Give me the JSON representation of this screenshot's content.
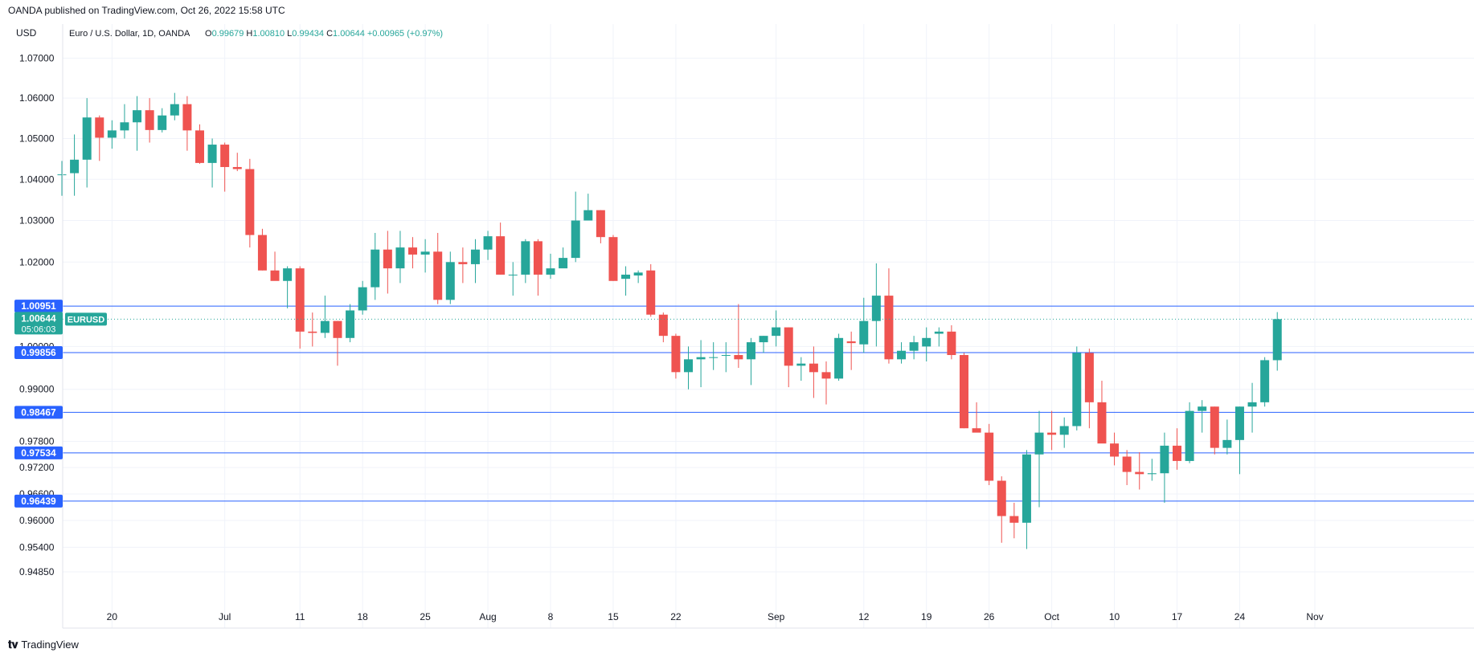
{
  "header": {
    "published": "OANDA published on TradingView.com, Oct 26, 2022 15:58 UTC"
  },
  "footer": {
    "logo_text": "TradingView"
  },
  "legend": {
    "currency": "USD",
    "symbol_text": "Euro / U.S. Dollar, 1D, OANDA",
    "open_label": "O",
    "open": "0.99679",
    "high_label": "H",
    "high": "1.00810",
    "low_label": "L",
    "low": "0.99434",
    "close_label": "C",
    "close": "1.00644",
    "change": "+0.00965 (+0.97%)"
  },
  "colors": {
    "up": "#26a69a",
    "down": "#ef5350",
    "grid": "#f0f3fa",
    "hline": "#2962ff",
    "axis_label_bg": "#2962ff",
    "last_price_bg": "#26a69a"
  },
  "price_scale": {
    "ticks": [
      "1.07000",
      "1.06000",
      "1.05000",
      "1.04000",
      "1.03000",
      "1.02000",
      "1.00000",
      "0.99000",
      "0.97800",
      "0.97200",
      "0.96600",
      "0.96000",
      "0.95400",
      "0.94850"
    ]
  },
  "horizontal_lines": [
    "1.00951",
    "0.99856",
    "0.98467",
    "0.97534",
    "0.96439"
  ],
  "last_price": {
    "value": "1.00644",
    "countdown": "05:06:03",
    "symbol": "EURUSD"
  },
  "chart_data": {
    "type": "candlestick",
    "title": "Euro / U.S. Dollar, 1D, OANDA",
    "ylabel": "USD",
    "ylim": [
      0.9444,
      1.0735
    ],
    "scale": "log",
    "x_ticks": [
      {
        "label": "20",
        "index": 4
      },
      {
        "label": "Jul",
        "index": 13
      },
      {
        "label": "11",
        "index": 19
      },
      {
        "label": "18",
        "index": 24
      },
      {
        "label": "25",
        "index": 29
      },
      {
        "label": "Aug",
        "index": 34
      },
      {
        "label": "8",
        "index": 39
      },
      {
        "label": "15",
        "index": 44
      },
      {
        "label": "22",
        "index": 49
      },
      {
        "label": "Sep",
        "index": 57
      },
      {
        "label": "12",
        "index": 64
      },
      {
        "label": "19",
        "index": 69
      },
      {
        "label": "26",
        "index": 74
      },
      {
        "label": "Oct",
        "index": 79
      },
      {
        "label": "10",
        "index": 84
      },
      {
        "label": "17",
        "index": 89
      },
      {
        "label": "24",
        "index": 94
      },
      {
        "label": "Nov",
        "index": 100
      }
    ],
    "candles": [
      [
        1.0412,
        1.0445,
        1.036,
        1.0412
      ],
      [
        1.0415,
        1.051,
        1.036,
        1.0448
      ],
      [
        1.0448,
        1.06,
        1.038,
        1.0552
      ],
      [
        1.0552,
        1.0557,
        1.0445,
        1.0502
      ],
      [
        1.0502,
        1.0545,
        1.0475,
        1.052
      ],
      [
        1.052,
        1.0585,
        1.05,
        1.054
      ],
      [
        1.054,
        1.0605,
        1.047,
        1.057
      ],
      [
        1.057,
        1.06,
        1.049,
        1.0521
      ],
      [
        1.0521,
        1.0575,
        1.0515,
        1.0557
      ],
      [
        1.0557,
        1.0613,
        1.0545,
        1.0585
      ],
      [
        1.0585,
        1.0605,
        1.047,
        1.052
      ],
      [
        1.052,
        1.0535,
        1.0438,
        1.044
      ],
      [
        1.044,
        1.05,
        1.038,
        1.0485
      ],
      [
        1.0485,
        1.049,
        1.037,
        1.043
      ],
      [
        1.043,
        1.0465,
        1.042,
        1.0425
      ],
      [
        1.0425,
        1.045,
        1.0235,
        1.0265
      ],
      [
        1.0265,
        1.028,
        1.018,
        1.018
      ],
      [
        1.018,
        1.0225,
        1.016,
        1.0155
      ],
      [
        1.0155,
        1.019,
        1.009,
        1.0185
      ],
      [
        1.0185,
        1.019,
        0.9995,
        1.0035
      ],
      [
        1.0035,
        1.008,
        1.0,
        1.0032
      ],
      [
        1.0032,
        1.012,
        1.002,
        1.006
      ],
      [
        1.006,
        1.006,
        0.9955,
        1.002
      ],
      [
        1.002,
        1.01,
        1.001,
        1.0085
      ],
      [
        1.0085,
        1.0155,
        1.0075,
        1.014
      ],
      [
        1.014,
        1.027,
        1.011,
        1.023
      ],
      [
        1.023,
        1.0275,
        1.0125,
        1.0185
      ],
      [
        1.0185,
        1.0275,
        1.015,
        1.0235
      ],
      [
        1.0235,
        1.026,
        1.0185,
        1.0218
      ],
      [
        1.0218,
        1.0255,
        1.0175,
        1.0225
      ],
      [
        1.0225,
        1.027,
        1.01,
        1.011
      ],
      [
        1.011,
        1.0225,
        1.01,
        1.02
      ],
      [
        1.02,
        1.0235,
        1.015,
        1.0195
      ],
      [
        1.0195,
        1.0255,
        1.015,
        1.023
      ],
      [
        1.023,
        1.0275,
        1.0205,
        1.0262
      ],
      [
        1.0262,
        1.0295,
        1.017,
        1.017
      ],
      [
        1.017,
        1.02,
        1.012,
        1.017
      ],
      [
        1.017,
        1.0255,
        1.015,
        1.025
      ],
      [
        1.025,
        1.0255,
        1.012,
        1.017
      ],
      [
        1.017,
        1.022,
        1.016,
        1.0185
      ],
      [
        1.0185,
        1.0235,
        1.019,
        1.021
      ],
      [
        1.021,
        1.037,
        1.02,
        1.03
      ],
      [
        1.03,
        1.0365,
        1.03,
        1.0325
      ],
      [
        1.0325,
        1.0325,
        1.0245,
        1.026
      ],
      [
        1.026,
        1.0265,
        1.0155,
        1.0155
      ],
      [
        1.016,
        1.019,
        1.012,
        1.017
      ],
      [
        1.0168,
        1.018,
        1.015,
        1.0175
      ],
      [
        1.018,
        1.0195,
        1.007,
        1.0075
      ],
      [
        1.0075,
        1.008,
        1.001,
        1.0025
      ],
      [
        1.0025,
        1.003,
        0.9925,
        0.994
      ],
      [
        0.994,
        1.0,
        0.99,
        0.997
      ],
      [
        0.997,
        1.0015,
        0.9905,
        0.9975
      ],
      [
        0.9975,
        1.001,
        0.9945,
        0.9975
      ],
      [
        0.998,
        1.001,
        0.994,
        0.998
      ],
      [
        0.998,
        1.01,
        0.995,
        0.997
      ],
      [
        0.997,
        1.002,
        0.991,
        1.001
      ],
      [
        1.001,
        1.0025,
        0.9985,
        1.0025
      ],
      [
        1.0025,
        1.0085,
        1.0,
        1.0045
      ],
      [
        1.0045,
        1.0045,
        0.9905,
        0.9955
      ],
      [
        0.9955,
        0.9975,
        0.992,
        0.996
      ],
      [
        0.996,
        1.0,
        0.988,
        0.994
      ],
      [
        0.994,
        0.9965,
        0.9865,
        0.9925
      ],
      [
        0.9925,
        1.003,
        0.992,
        1.002
      ],
      [
        1.0012,
        1.0035,
        0.9945,
        1.0008
      ],
      [
        1.0005,
        1.0115,
        0.9985,
        1.006
      ],
      [
        1.006,
        1.0197,
        1.0,
        1.012
      ],
      [
        1.012,
        1.0185,
        0.996,
        0.997
      ],
      [
        0.997,
        1.001,
        0.996,
        0.999
      ],
      [
        0.999,
        1.0025,
        0.997,
        1.001
      ],
      [
        1.0,
        1.0045,
        0.9965,
        1.002
      ],
      [
        1.003,
        1.0045,
        1.0,
        1.0035
      ],
      [
        1.0035,
        1.005,
        0.997,
        0.998
      ],
      [
        0.998,
        0.9985,
        0.981,
        0.981
      ],
      [
        0.981,
        0.987,
        0.9805,
        0.98
      ],
      [
        0.98,
        0.982,
        0.968,
        0.969
      ],
      [
        0.969,
        0.97,
        0.955,
        0.961
      ],
      [
        0.961,
        0.964,
        0.956,
        0.9595
      ],
      [
        0.9595,
        0.976,
        0.9536,
        0.975
      ],
      [
        0.975,
        0.985,
        0.963,
        0.98
      ],
      [
        0.98,
        0.985,
        0.976,
        0.9795
      ],
      [
        0.9795,
        0.9835,
        0.9765,
        0.9815
      ],
      [
        0.9815,
        1.0,
        0.9805,
        0.9985
      ],
      [
        0.9985,
        0.9995,
        0.981,
        0.987
      ],
      [
        0.987,
        0.992,
        0.9785,
        0.9775
      ],
      [
        0.9775,
        0.98,
        0.9725,
        0.9745
      ],
      [
        0.9745,
        0.976,
        0.968,
        0.971
      ],
      [
        0.971,
        0.9755,
        0.967,
        0.9705
      ],
      [
        0.9705,
        0.974,
        0.969,
        0.9707
      ],
      [
        0.9707,
        0.98,
        0.964,
        0.977
      ],
      [
        0.977,
        0.981,
        0.9715,
        0.9735
      ],
      [
        0.9735,
        0.987,
        0.973,
        0.985
      ],
      [
        0.985,
        0.9875,
        0.98,
        0.986
      ],
      [
        0.986,
        0.986,
        0.975,
        0.9765
      ],
      [
        0.9765,
        0.983,
        0.975,
        0.9783
      ],
      [
        0.9783,
        0.986,
        0.9705,
        0.986
      ],
      [
        0.986,
        0.9915,
        0.98,
        0.987
      ],
      [
        0.987,
        0.9975,
        0.986,
        0.9968
      ],
      [
        0.99679,
        1.0081,
        0.99434,
        1.00644
      ]
    ]
  }
}
